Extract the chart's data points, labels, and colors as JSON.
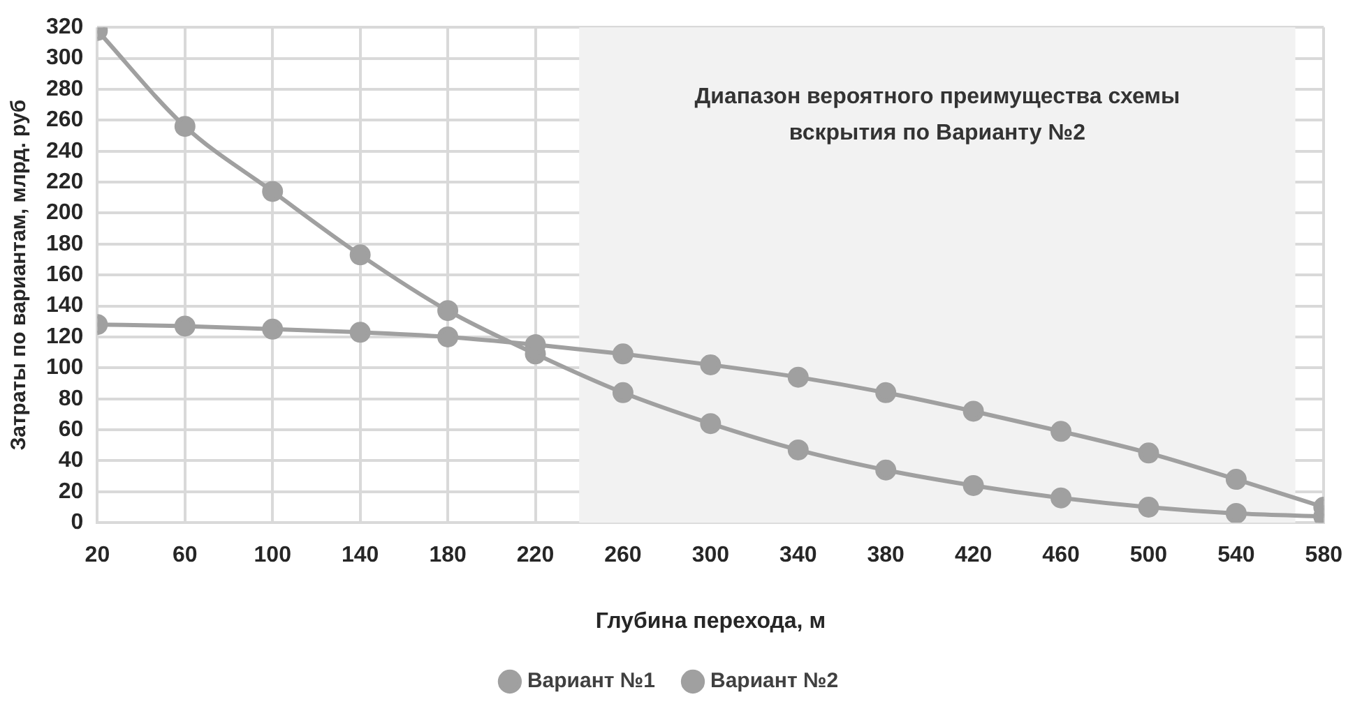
{
  "chart_data": {
    "type": "line",
    "xlabel": "Глубина перехода, м",
    "ylabel": "Затраты по вариантам, млрд. руб",
    "x": [
      20,
      60,
      100,
      140,
      180,
      220,
      260,
      300,
      340,
      380,
      420,
      460,
      500,
      540,
      580
    ],
    "xlim": [
      20,
      580
    ],
    "xticks": [
      20,
      60,
      100,
      140,
      180,
      220,
      260,
      300,
      340,
      380,
      420,
      460,
      500,
      540,
      580
    ],
    "ylim": [
      0,
      320
    ],
    "yticks": [
      0,
      20,
      40,
      60,
      80,
      100,
      120,
      140,
      160,
      180,
      200,
      220,
      240,
      260,
      280,
      300,
      320
    ],
    "series": [
      {
        "name": "Вариант №1",
        "color": "#a0a0a0",
        "values": [
          128,
          127,
          125,
          123,
          120,
          115,
          109,
          102,
          94,
          84,
          72,
          59,
          45,
          28,
          10
        ]
      },
      {
        "name": "Вариант №2",
        "color": "#a0a0a0",
        "values": [
          318,
          256,
          214,
          173,
          137,
          109,
          84,
          64,
          47,
          34,
          24,
          16,
          10,
          6,
          4
        ]
      }
    ],
    "bands": [
      {
        "axis": "x",
        "from": 240,
        "to": 567,
        "label": "Диапазон вероятного преимущества схемы вскрытия по Варианту №2",
        "color": "#f2f2f2"
      }
    ],
    "grid": true,
    "legend": "bottom",
    "marker": "circle",
    "line_style": "solid"
  }
}
